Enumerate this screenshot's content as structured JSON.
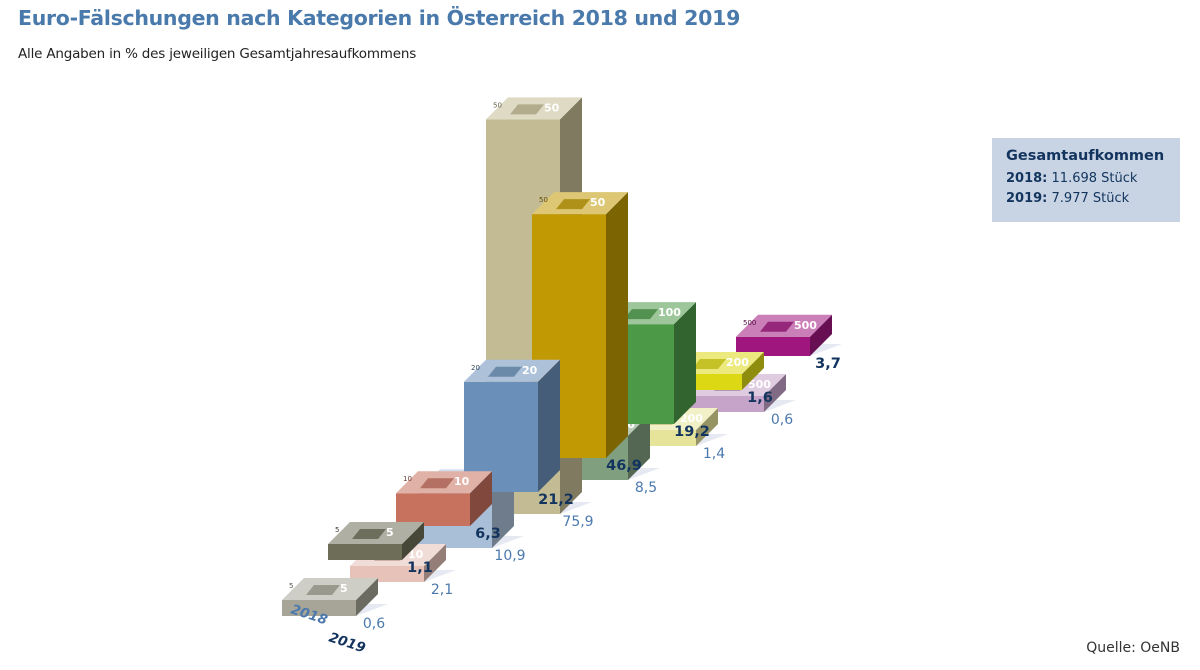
{
  "title": "Euro-Fälschungen nach Kategorien in Österreich 2018 und 2019",
  "subtitle": "Alle Angaben in % des jeweiligen Gesamtjahresaufkommens",
  "source": "Quelle: OeNB",
  "totals": {
    "heading": "Gesamtaufkommen",
    "year_2018": "2018:",
    "value_2018": "11.698 Stück",
    "year_2019": "2019:",
    "value_2019": "7.977 Stück"
  },
  "chart_data": {
    "type": "bar",
    "title": "Euro-Fälschungen nach Kategorien in Österreich 2018 und 2019",
    "ylabel": "% des jeweiligen Gesamtjahresaufkommens",
    "categories": [
      "5",
      "10",
      "20",
      "50",
      "100",
      "200",
      "500"
    ],
    "series": [
      {
        "name": "2018",
        "values": [
          0.6,
          2.1,
          10.9,
          75.9,
          8.5,
          1.4,
          0.6
        ],
        "labels": [
          "0,6",
          "2,1",
          "10,9",
          "75,9",
          "8,5",
          "1,4",
          "0,6"
        ]
      },
      {
        "name": "2019",
        "values": [
          1.1,
          6.3,
          21.2,
          46.9,
          19.2,
          1.6,
          3.7
        ],
        "labels": [
          "1,1",
          "6,3",
          "21,2",
          "46,9",
          "19,2",
          "1,6",
          "3,7"
        ]
      }
    ],
    "colors": {
      "2018": [
        "#a6a597",
        "#e6c2b8",
        "#a9bfd8",
        "#c3bb94",
        "#7f9f7e",
        "#e6e49a",
        "#c6a3c9"
      ],
      "2019": [
        "#6e6e58",
        "#c7715f",
        "#6a8fb8",
        "#c19a03",
        "#4c9a48",
        "#dcd914",
        "#a0167f"
      ]
    }
  }
}
